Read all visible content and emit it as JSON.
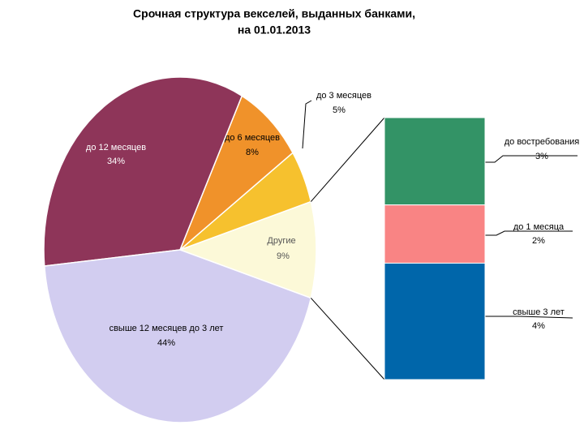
{
  "chart_data": {
    "type": "bar-of-pie",
    "title": [
      "Срочная структура векселей, выданных банками,",
      "на 01.01.2013"
    ],
    "pie": {
      "categories": [
        "Другие",
        "до 3 месяцев",
        "до 6 месяцев",
        "до 12 месяцев",
        "свыше 12 месяцев до 3 лет"
      ],
      "values": [
        9,
        5,
        8,
        34,
        44
      ],
      "value_labels": [
        "9%",
        "5%",
        "8%",
        "34%",
        "44%"
      ],
      "colors": [
        "#fcf9d8",
        "#f6c12e",
        "#f0922a",
        "#8e3559",
        "#d2cdf0"
      ]
    },
    "bar": {
      "categories": [
        "до востребования",
        "до 1 месяца",
        "свыше 3 лет"
      ],
      "values": [
        3,
        2,
        4
      ],
      "value_labels": [
        "3%",
        "2%",
        "4%"
      ],
      "colors": [
        "#339366",
        "#f98484",
        "#0066aa"
      ]
    }
  }
}
